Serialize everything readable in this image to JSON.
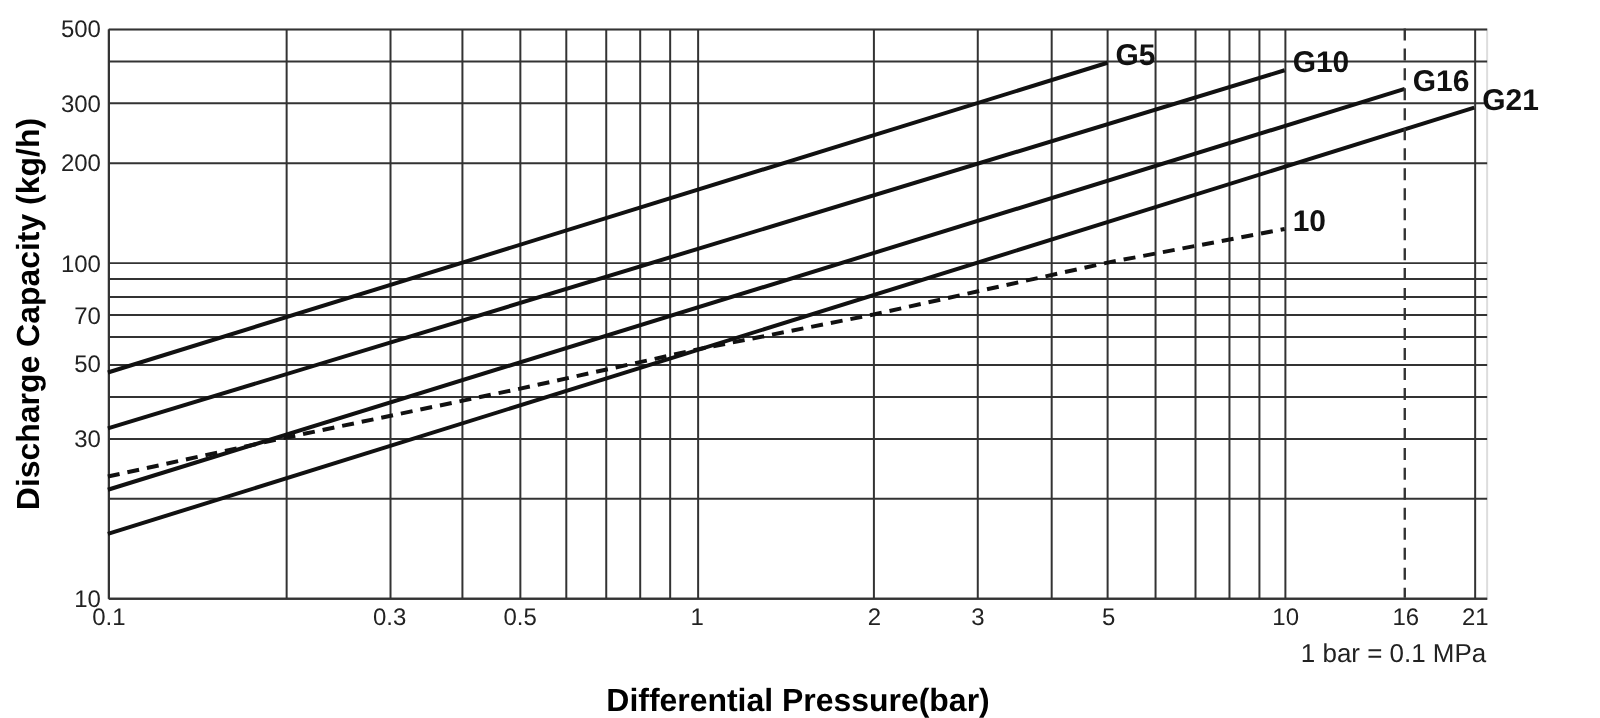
{
  "chart_data": {
    "type": "line",
    "xlabel": "Differential Pressure(bar)",
    "ylabel": "Discharge Capacity (kg/h)",
    "log": "xy",
    "grid": true,
    "legend": false,
    "xlim": [
      0.1,
      22
    ],
    "ylim": [
      10,
      500
    ],
    "xticks": [
      0.1,
      {
        "value": 0.2,
        "label": null
      },
      0.3,
      {
        "value": 0.4,
        "label": null
      },
      0.5,
      {
        "value": 0.6,
        "label": null
      },
      {
        "value": 0.7,
        "label": null
      },
      {
        "value": 0.8,
        "label": null
      },
      {
        "value": 0.9,
        "label": null
      },
      1,
      2,
      3,
      {
        "value": 4,
        "label": null
      },
      5,
      {
        "value": 6,
        "label": null
      },
      {
        "value": 7,
        "label": null
      },
      {
        "value": 8,
        "label": null
      },
      {
        "value": 9,
        "label": null
      },
      10,
      16,
      21
    ],
    "yticks": [
      10,
      {
        "value": 20,
        "label": null
      },
      30,
      {
        "value": 40,
        "label": null
      },
      50,
      {
        "value": 60,
        "label": null
      },
      70,
      {
        "value": 80,
        "label": null
      },
      {
        "value": 90,
        "label": null
      },
      100,
      200,
      300,
      {
        "value": 400,
        "label": null
      },
      500
    ],
    "series": [
      {
        "name": "G5",
        "color": "#111111",
        "line_style": "solid",
        "x": [
          0.1,
          5
        ],
        "values": [
          47,
          395
        ]
      },
      {
        "name": "G10",
        "color": "#111111",
        "line_style": "solid",
        "x": [
          0.1,
          10
        ],
        "values": [
          32,
          375
        ]
      },
      {
        "name": "G16",
        "color": "#111111",
        "line_style": "solid",
        "x": [
          0.1,
          16
        ],
        "values": [
          21,
          330
        ]
      },
      {
        "name": "G21",
        "color": "#111111",
        "line_style": "solid",
        "x": [
          0.1,
          21
        ],
        "values": [
          15.5,
          290
        ]
      },
      {
        "name": "10",
        "color": "#111111",
        "line_style": "dashed",
        "x": [
          0.1,
          0.2,
          0.5,
          1,
          2,
          3,
          5,
          10
        ],
        "values": [
          23,
          30,
          42,
          55,
          70,
          82,
          100,
          126
        ]
      }
    ],
    "ref_lines": [
      {
        "axis": "x",
        "value": 16,
        "label": null,
        "color": "#333333",
        "line_style": "dashed"
      }
    ],
    "annotations": [
      "1 bar = 0.1 MPa"
    ]
  }
}
